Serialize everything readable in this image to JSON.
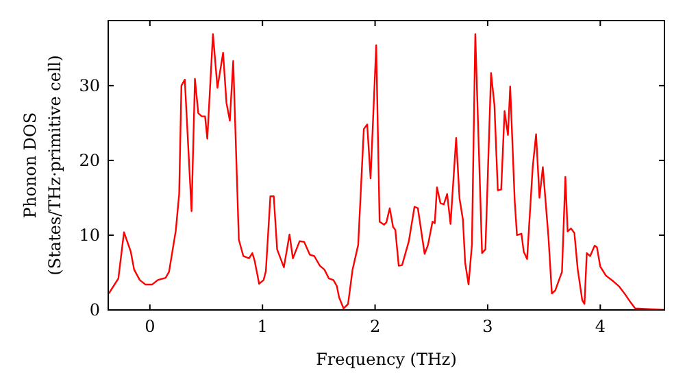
{
  "chart_data": {
    "type": "line",
    "xlabel": "Frequency (THz)",
    "ylabel": "Phonon DOS\n(States/THz·primitive cell)",
    "xlim": [
      -0.37,
      4.57
    ],
    "ylim": [
      0,
      38.7
    ],
    "xticks": [
      0,
      1,
      2,
      3,
      4
    ],
    "yticks": [
      0,
      10,
      20,
      30
    ],
    "grid": false,
    "marker": "none",
    "line_style": "solid",
    "series": [
      {
        "color": "#ff0000",
        "x": [
          -0.365,
          -0.28,
          -0.23,
          -0.17,
          -0.14,
          -0.09,
          -0.04,
          0.02,
          0.07,
          0.14,
          0.17,
          0.23,
          0.26,
          0.28,
          0.31,
          0.37,
          0.4,
          0.43,
          0.46,
          0.49,
          0.51,
          0.56,
          0.6,
          0.65,
          0.68,
          0.71,
          0.74,
          0.79,
          0.83,
          0.88,
          0.91,
          0.93,
          0.97,
          1.01,
          1.03,
          1.07,
          1.1,
          1.13,
          1.19,
          1.24,
          1.27,
          1.33,
          1.37,
          1.42,
          1.46,
          1.51,
          1.55,
          1.59,
          1.63,
          1.66,
          1.68,
          1.72,
          1.76,
          1.8,
          1.85,
          1.9,
          1.93,
          1.96,
          2.01,
          2.04,
          2.08,
          2.1,
          2.13,
          2.16,
          2.18,
          2.21,
          2.24,
          2.3,
          2.35,
          2.38,
          2.44,
          2.47,
          2.51,
          2.53,
          2.55,
          2.58,
          2.61,
          2.64,
          2.67,
          2.72,
          2.75,
          2.78,
          2.8,
          2.83,
          2.86,
          2.89,
          2.95,
          2.98,
          3.03,
          3.06,
          3.09,
          3.12,
          3.15,
          3.18,
          3.2,
          3.24,
          3.26,
          3.3,
          3.32,
          3.35,
          3.4,
          3.43,
          3.46,
          3.49,
          3.54,
          3.57,
          3.6,
          3.66,
          3.69,
          3.71,
          3.74,
          3.77,
          3.8,
          3.84,
          3.86,
          3.88,
          3.91,
          3.95,
          3.97,
          4.0,
          4.05,
          4.11,
          4.17,
          4.22,
          4.27,
          4.31,
          4.57
        ],
        "values": [
          2.2,
          4.2,
          10.4,
          7.8,
          5.4,
          4.0,
          3.4,
          3.4,
          4.0,
          4.3,
          5.1,
          10.6,
          15.5,
          30.0,
          30.8,
          13.2,
          30.9,
          26.3,
          25.9,
          25.9,
          22.9,
          36.9,
          29.7,
          34.4,
          27.7,
          25.3,
          33.3,
          9.4,
          7.2,
          6.9,
          7.6,
          6.6,
          3.5,
          4.0,
          5.2,
          15.2,
          15.2,
          8.1,
          5.7,
          10.1,
          6.9,
          9.2,
          9.1,
          7.4,
          7.2,
          5.9,
          5.4,
          4.2,
          4.0,
          3.2,
          1.7,
          0.2,
          0.8,
          5.4,
          8.7,
          24.2,
          24.8,
          17.6,
          35.4,
          11.8,
          11.4,
          11.7,
          13.6,
          11.1,
          10.7,
          5.9,
          6.0,
          9.2,
          13.8,
          13.6,
          7.5,
          8.7,
          11.8,
          11.6,
          16.4,
          14.3,
          14.1,
          15.5,
          11.5,
          23.0,
          14.9,
          12.1,
          6.3,
          3.4,
          8.7,
          36.9,
          7.6,
          8.1,
          31.7,
          27.4,
          16.0,
          16.1,
          26.6,
          23.4,
          29.9,
          14.6,
          10.0,
          10.2,
          7.8,
          6.8,
          19.1,
          23.5,
          15.0,
          19.1,
          9.7,
          2.2,
          2.6,
          5.1,
          17.8,
          10.5,
          10.9,
          10.3,
          5.4,
          1.3,
          0.8,
          7.6,
          7.2,
          8.6,
          8.4,
          5.8,
          4.6,
          3.9,
          3.1,
          2.1,
          1.0,
          0.2,
          0.0
        ]
      }
    ]
  }
}
